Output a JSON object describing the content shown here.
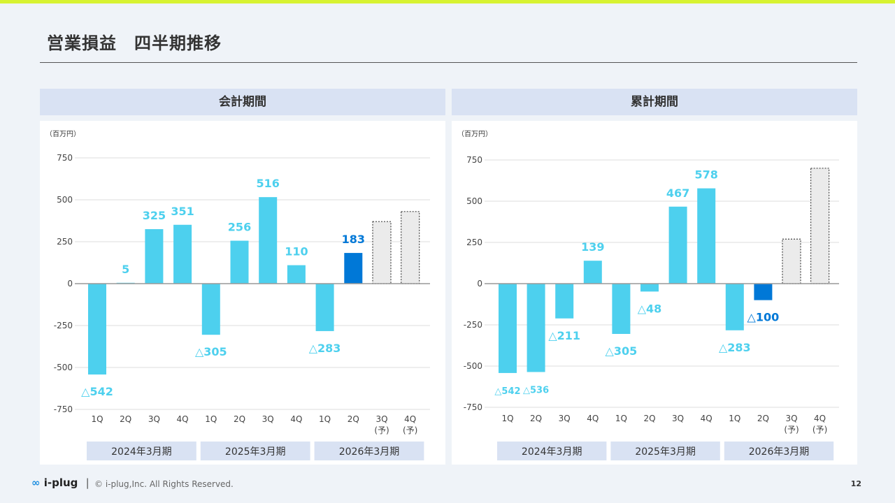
{
  "title": "営業損益　四半期推移",
  "footer": {
    "logo": "i-plug",
    "separator": "|",
    "copyright": "© i-plug,Inc. All Rights Reserved.",
    "page": "12"
  },
  "colors": {
    "actual": "#4dd0ee",
    "current": "#0078d7",
    "forecast": "#ebebeb",
    "header_bg": "#d9e2f3",
    "accent_bar": "#d7f231"
  },
  "chart_data": [
    {
      "type": "bar",
      "title": "会計期間",
      "unit": "（百万円）",
      "ylim": [
        -750,
        750
      ],
      "yticks": [
        750,
        500,
        250,
        0,
        -250,
        -500,
        -750
      ],
      "categories": [
        "1Q",
        "2Q",
        "3Q",
        "4Q",
        "1Q",
        "2Q",
        "3Q",
        "4Q",
        "1Q",
        "2Q",
        "3Q\n(予)",
        "4Q\n(予)"
      ],
      "groups": [
        "2024年3月期",
        "2025年3月期",
        "2026年3月期"
      ],
      "values": [
        -542,
        5,
        325,
        351,
        -305,
        256,
        516,
        110,
        -283,
        183,
        370,
        430
      ],
      "labels": [
        "△542",
        "5",
        "325",
        "351",
        "△305",
        "256",
        "516",
        "110",
        "△283",
        "183",
        "",
        ""
      ],
      "kind": [
        "actual",
        "actual",
        "actual",
        "actual",
        "actual",
        "actual",
        "actual",
        "actual",
        "actual",
        "current",
        "forecast",
        "forecast"
      ],
      "grid": true
    },
    {
      "type": "bar",
      "title": "累計期間",
      "unit": "（百万円）",
      "ylim": [
        -750,
        750
      ],
      "yticks": [
        750,
        500,
        250,
        0,
        -250,
        -500,
        -750
      ],
      "categories": [
        "1Q",
        "2Q",
        "3Q",
        "4Q",
        "1Q",
        "2Q",
        "3Q",
        "4Q",
        "1Q",
        "2Q",
        "3Q\n(予)",
        "4Q\n(予)"
      ],
      "groups": [
        "2024年3月期",
        "2025年3月期",
        "2026年3月期"
      ],
      "values": [
        -542,
        -536,
        -211,
        139,
        -305,
        -48,
        467,
        578,
        -283,
        -100,
        270,
        700
      ],
      "labels": [
        "△542",
        "△536",
        "△211",
        "139",
        "△305",
        "△48",
        "467",
        "578",
        "△283",
        "△100",
        "",
        ""
      ],
      "kind": [
        "actual",
        "actual",
        "actual",
        "actual",
        "actual",
        "actual",
        "actual",
        "actual",
        "actual",
        "current",
        "forecast",
        "forecast"
      ],
      "grid": true
    }
  ]
}
